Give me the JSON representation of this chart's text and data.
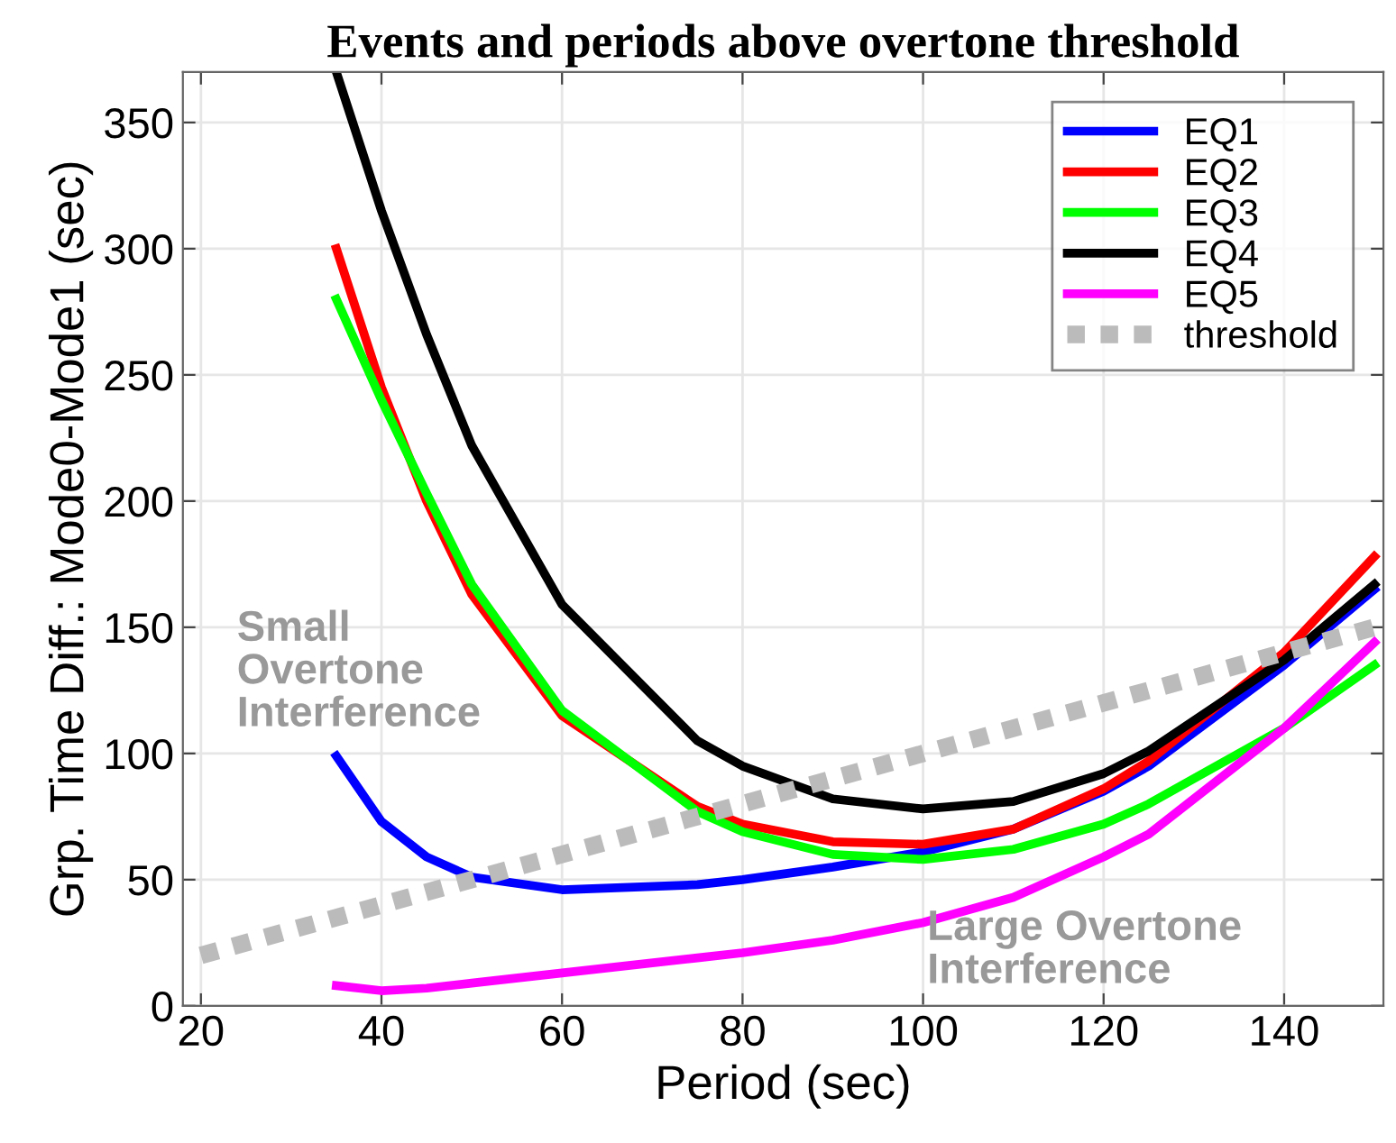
{
  "chart_data": {
    "type": "line",
    "title": "Events and periods above overtone threshold",
    "xlabel": "Period (sec)",
    "ylabel": "Grp. Time Diff.: Mode0-Mode1 (sec)",
    "x": [
      35,
      40,
      45,
      50,
      60,
      75,
      80,
      90,
      100,
      110,
      120,
      125,
      140,
      150
    ],
    "series": [
      {
        "name": "EQ1",
        "color": "#0000ff",
        "values": [
          99,
          73,
          59,
          51,
          46,
          48,
          50,
          55,
          61,
          70,
          85,
          95,
          135,
          165
        ]
      },
      {
        "name": "EQ2",
        "color": "#ff0000",
        "values": [
          300,
          245,
          200,
          163,
          115,
          79,
          72,
          65,
          64,
          70,
          86,
          97,
          140,
          178
        ]
      },
      {
        "name": "EQ3",
        "color": "#00ff00",
        "values": [
          280,
          240,
          203,
          167,
          117,
          77,
          69,
          60,
          58,
          62,
          72,
          80,
          110,
          135
        ]
      },
      {
        "name": "EQ4",
        "color": "#000000",
        "values": [
          370,
          315,
          266,
          222,
          159,
          105,
          95,
          82,
          78,
          81,
          92,
          101,
          137,
          167
        ]
      },
      {
        "name": "EQ5",
        "color": "#ff00ff",
        "values": [
          8,
          6,
          7,
          9,
          13,
          19,
          21,
          26,
          33,
          43,
          59,
          68,
          110,
          144
        ]
      },
      {
        "name": "threshold",
        "color": "#bbbbbb",
        "x": [
          20,
          150
        ],
        "values": [
          20,
          150
        ],
        "line_style": "dotted"
      }
    ],
    "annotations": [
      "Small\nOvertone\nInterference",
      "Large Overtone\nInterference"
    ],
    "xlim": [
      18,
      151
    ],
    "ylim": [
      0,
      370
    ],
    "xticks": [
      20,
      40,
      60,
      80,
      100,
      120,
      140
    ],
    "yticks": [
      0,
      50,
      100,
      150,
      200,
      250,
      300,
      350
    ],
    "grid": true,
    "legend": "top right"
  }
}
